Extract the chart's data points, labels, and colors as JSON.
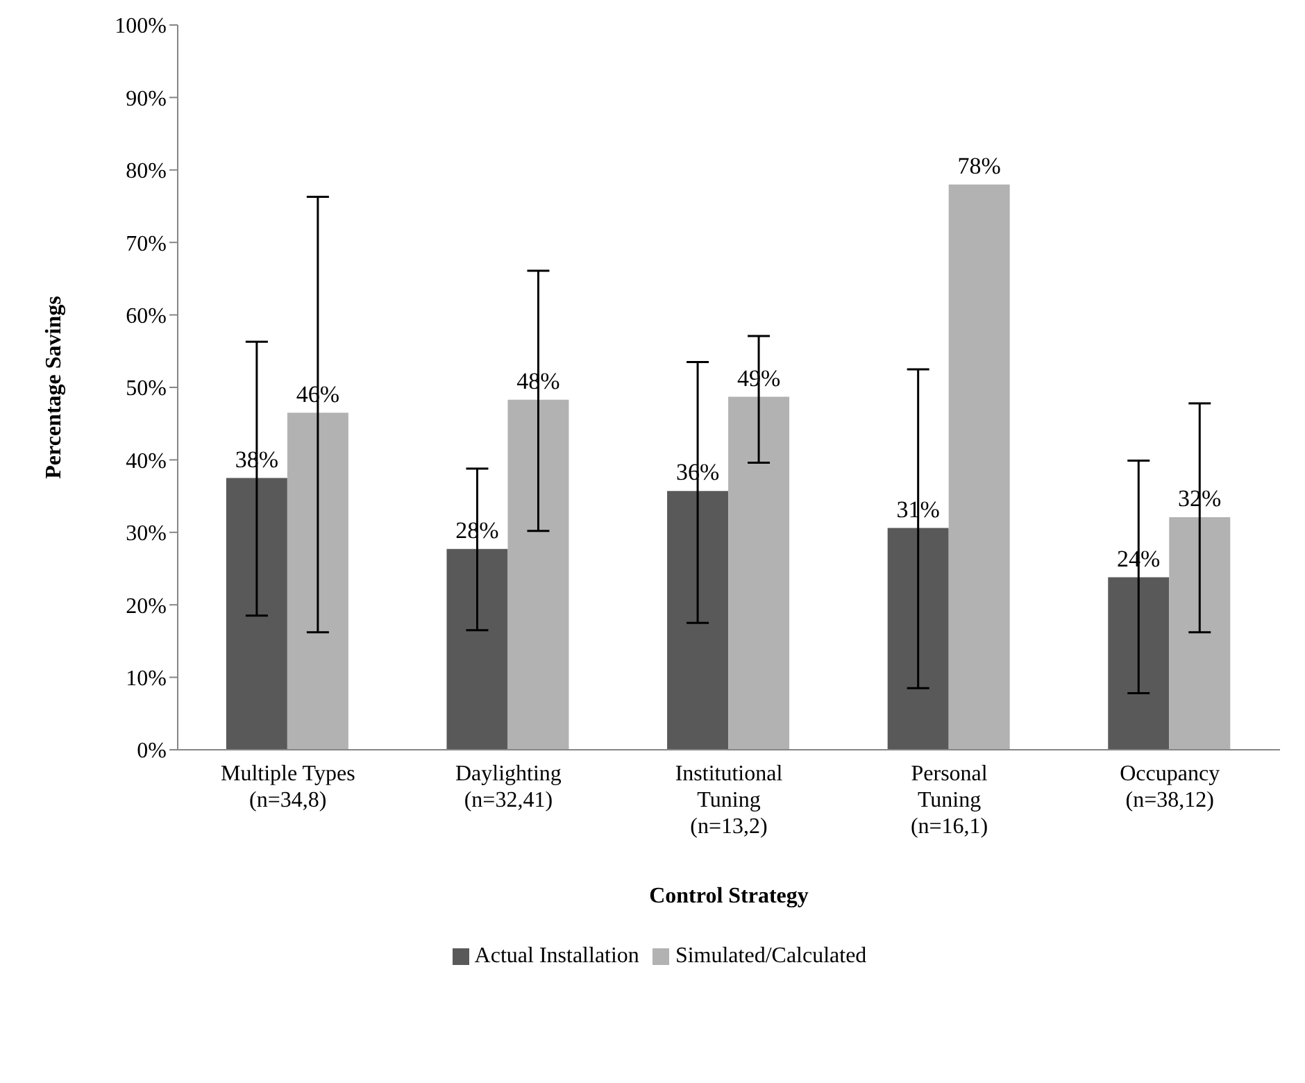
{
  "chart_data": {
    "type": "bar",
    "xlabel": "Control Strategy",
    "ylabel": "Percentage Savings",
    "categories": [
      "Multiple Types\n(n=34,8)",
      "Daylighting\n(n=32,41)",
      "Institutional\nTuning\n(n=13,2)",
      "Personal\nTuning\n(n=16,1)",
      "Occupancy\n(n=38,12)"
    ],
    "series": [
      {
        "name": "Actual Installation",
        "color": "#595959",
        "values": [
          37.5,
          27.7,
          35.7,
          30.6,
          23.8
        ],
        "value_labels": [
          "38%",
          "28%",
          "36%",
          "31%",
          "24%"
        ],
        "errors": [
          [
            18.5,
            56.3
          ],
          [
            16.5,
            38.8
          ],
          [
            17.5,
            53.5
          ],
          [
            8.5,
            52.5
          ],
          [
            7.8,
            39.9
          ]
        ]
      },
      {
        "name": "Simulated/Calculated",
        "color": "#b2b2b2",
        "values": [
          46.5,
          48.3,
          48.7,
          78,
          32.1
        ],
        "value_labels": [
          "46%",
          "48%",
          "49%",
          "78%",
          "32%"
        ],
        "errors": [
          [
            16.2,
            76.3
          ],
          [
            30.2,
            66.1
          ],
          [
            39.6,
            57.1
          ],
          null,
          [
            16.2,
            47.8
          ]
        ]
      }
    ],
    "ylim": [
      0,
      100
    ],
    "yticks": [
      {
        "value": 0,
        "label": "0%"
      },
      {
        "value": 10,
        "label": "10%"
      },
      {
        "value": 20,
        "label": "20%"
      },
      {
        "value": 30,
        "label": "30%"
      },
      {
        "value": 40,
        "label": "40%"
      },
      {
        "value": 50,
        "label": "50%"
      },
      {
        "value": 60,
        "label": "60%"
      },
      {
        "value": 70,
        "label": "70%"
      },
      {
        "value": 80,
        "label": "80%"
      },
      {
        "value": 90,
        "label": "90%"
      },
      {
        "value": 100,
        "label": "100%"
      }
    ],
    "grid": false,
    "legend": "bottom"
  }
}
